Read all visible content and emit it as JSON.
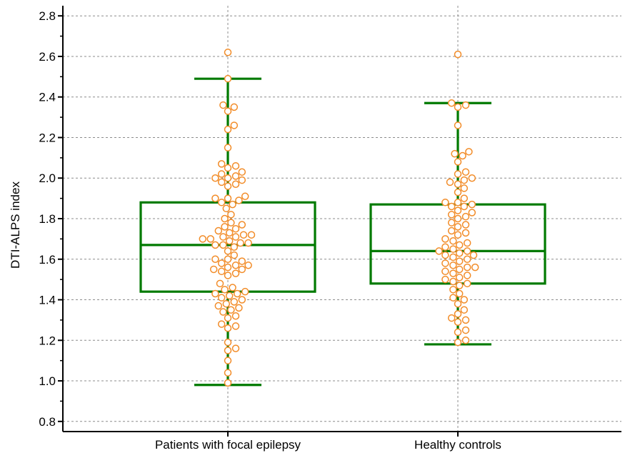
{
  "chart_data": {
    "type": "box",
    "title": "",
    "xlabel": "",
    "ylabel": "DTI-ALPS index",
    "ylim": [
      0.75,
      2.85
    ],
    "yticks": [
      "0.8",
      "1.0",
      "1.2",
      "1.4",
      "1.6",
      "1.8",
      "2.0",
      "2.2",
      "2.4",
      "2.6",
      "2.8"
    ],
    "grid": true,
    "colors": {
      "box": "#007a00",
      "point": "#f28c28",
      "grid": "#8c8c8c"
    },
    "categories": [
      "Patients with focal epilepsy",
      "Healthy controls"
    ],
    "boxes": [
      {
        "whisker_low": 0.98,
        "q1": 1.44,
        "median": 1.67,
        "q3": 1.88,
        "whisker_high": 2.49
      },
      {
        "whisker_low": 1.18,
        "q1": 1.48,
        "median": 1.64,
        "q3": 1.87,
        "whisker_high": 2.37
      }
    ],
    "points": [
      [
        0.99,
        1.04,
        1.1,
        1.15,
        1.16,
        1.19,
        1.26,
        1.27,
        1.28,
        1.31,
        1.32,
        1.34,
        1.35,
        1.36,
        1.37,
        1.38,
        1.39,
        1.4,
        1.41,
        1.42,
        1.43,
        1.43,
        1.44,
        1.45,
        1.46,
        1.48,
        1.52,
        1.53,
        1.54,
        1.55,
        1.55,
        1.56,
        1.57,
        1.57,
        1.58,
        1.59,
        1.6,
        1.6,
        1.62,
        1.64,
        1.66,
        1.67,
        1.67,
        1.68,
        1.68,
        1.69,
        1.7,
        1.7,
        1.71,
        1.71,
        1.72,
        1.72,
        1.73,
        1.74,
        1.75,
        1.76,
        1.77,
        1.78,
        1.8,
        1.82,
        1.85,
        1.87,
        1.88,
        1.89,
        1.9,
        1.9,
        1.91,
        1.96,
        1.97,
        1.98,
        1.99,
        2.0,
        2.0,
        2.01,
        2.02,
        2.03,
        2.05,
        2.06,
        2.07,
        2.15,
        2.24,
        2.26,
        2.33,
        2.35,
        2.36,
        2.49,
        2.62
      ],
      [
        1.19,
        1.2,
        1.24,
        1.25,
        1.29,
        1.3,
        1.31,
        1.33,
        1.35,
        1.38,
        1.4,
        1.41,
        1.43,
        1.45,
        1.47,
        1.48,
        1.49,
        1.5,
        1.51,
        1.52,
        1.53,
        1.54,
        1.55,
        1.56,
        1.56,
        1.57,
        1.58,
        1.59,
        1.6,
        1.61,
        1.62,
        1.62,
        1.63,
        1.64,
        1.64,
        1.65,
        1.66,
        1.67,
        1.68,
        1.69,
        1.7,
        1.72,
        1.73,
        1.74,
        1.76,
        1.77,
        1.78,
        1.8,
        1.81,
        1.82,
        1.83,
        1.84,
        1.86,
        1.86,
        1.87,
        1.88,
        1.88,
        1.9,
        1.93,
        1.95,
        1.97,
        1.98,
        1.99,
        2.0,
        2.02,
        2.03,
        2.08,
        2.11,
        2.12,
        2.13,
        2.26,
        2.35,
        2.36,
        2.37,
        2.61
      ]
    ]
  }
}
